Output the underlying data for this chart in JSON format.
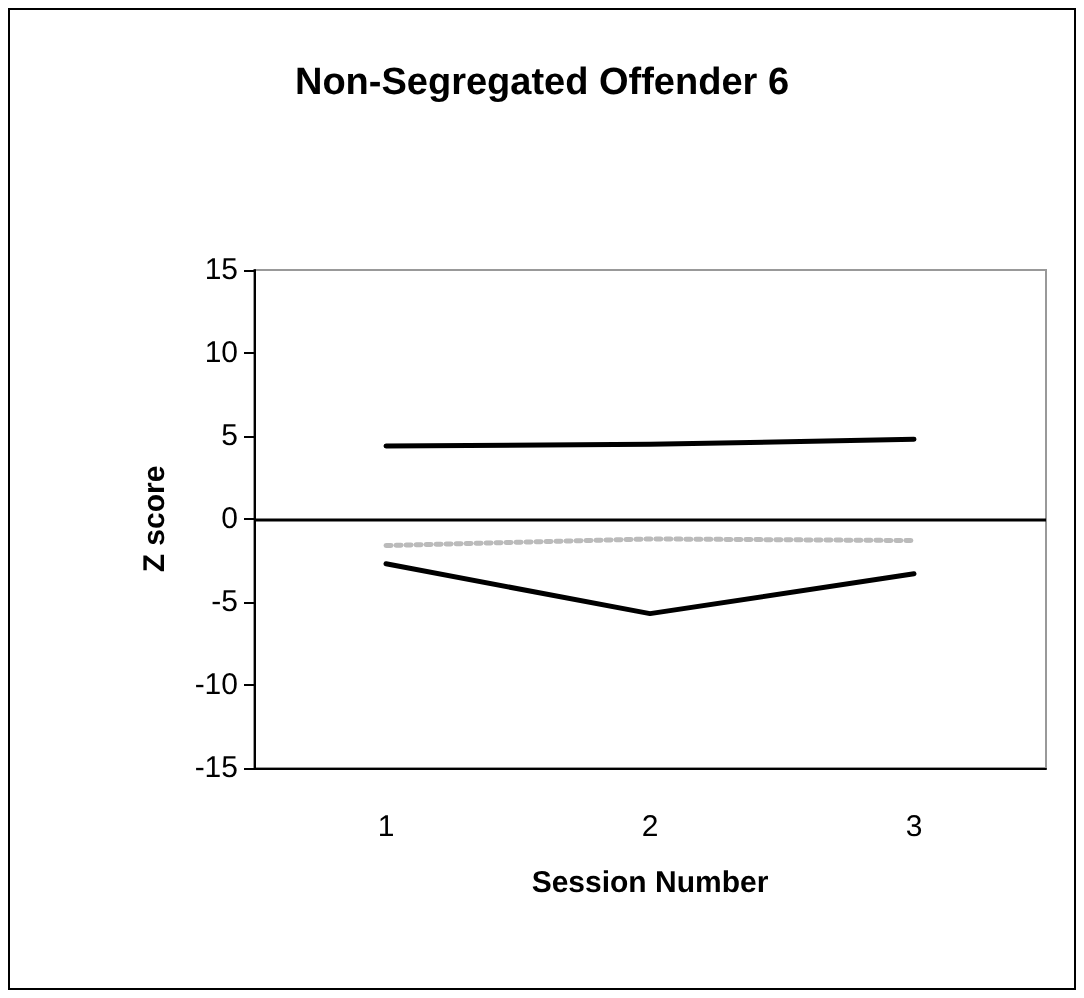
{
  "chart_data": {
    "type": "line",
    "title": "Non-Segregated Offender 6",
    "xlabel": "Session Number",
    "ylabel": "Z score",
    "categories": [
      "1",
      "2",
      "3"
    ],
    "series": [
      {
        "color": "#000000",
        "values": [
          4.4,
          4.5,
          4.8
        ],
        "line_style": "solid"
      },
      {
        "color": "#bbbbbb",
        "values": [
          -1.6,
          -1.2,
          -1.3
        ],
        "line_style": "dotted"
      },
      {
        "color": "#000000",
        "values": [
          -2.7,
          -5.7,
          -3.3
        ],
        "line_style": "solid"
      }
    ],
    "ylim": [
      -15,
      15
    ],
    "yticks": [
      -15,
      -10,
      -5,
      0,
      5,
      10,
      15
    ],
    "grid": false,
    "marker": "none",
    "ref_lines": [
      {
        "axis": "y",
        "value": 0,
        "color": "#000000",
        "line_style": "solid"
      }
    ]
  }
}
